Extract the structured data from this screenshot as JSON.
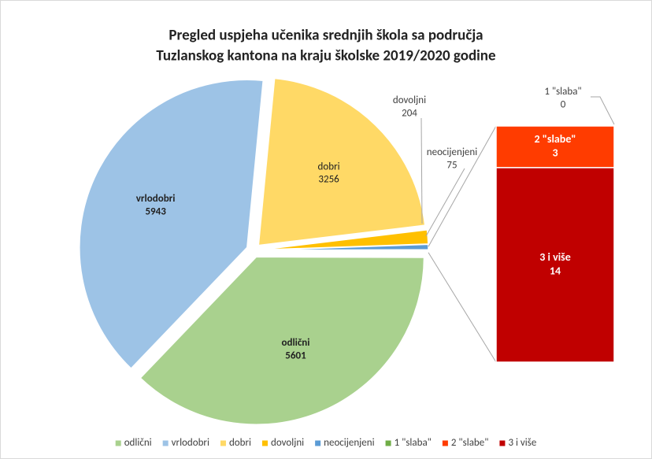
{
  "chart_data": {
    "type": "pie",
    "title": [
      "Pregled uspjeha učenika srednjih škola sa područja",
      "Tuzlanskog kantona na kraju školske 2019/2020 godine"
    ],
    "categories": [
      "odlični",
      "vrlodobri",
      "dobri",
      "dovoljni",
      "neocijenjeni",
      "1 \"slaba\"",
      "2 \"slabe\"",
      "3 i više"
    ],
    "values": [
      5601,
      5943,
      3256,
      204,
      75,
      0,
      3,
      14
    ],
    "colors": [
      "#a9d18e",
      "#9dc3e6",
      "#ffd966",
      "#ffc000",
      "#5b9bd5",
      "#70ad47",
      "#ff3c00",
      "#c00000"
    ],
    "legend": "bottom"
  }
}
